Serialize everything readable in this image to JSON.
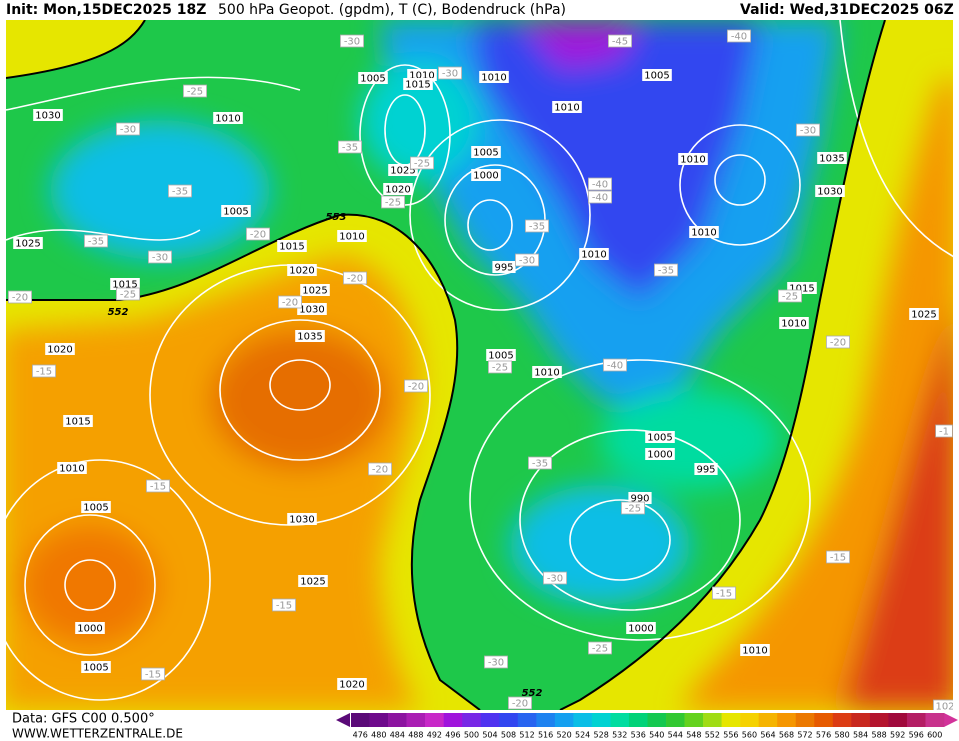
{
  "header": {
    "init": "Init: Mon,15DEC2025 18Z",
    "title": "500 hPa Geopot. (gpdm), T (C), Bodendruck (hPa)",
    "valid": "Valid: Wed,31DEC2025 06Z"
  },
  "footer": {
    "data": "Data: GFS C00 0.500°",
    "site": "WWW.WETTERZENTRALE.DE"
  },
  "colorbar": {
    "values": [
      476,
      480,
      484,
      488,
      492,
      496,
      500,
      504,
      508,
      512,
      516,
      520,
      524,
      528,
      532,
      536,
      540,
      544,
      548,
      552,
      556,
      560,
      564,
      568,
      572,
      576,
      580,
      584,
      588,
      592,
      596,
      600
    ],
    "colors": [
      "#5a0a78",
      "#6e0a8c",
      "#8c14a0",
      "#aa1eb4",
      "#c828c8",
      "#a014dc",
      "#7828e6",
      "#5032f0",
      "#3246f0",
      "#2864f0",
      "#1e82f0",
      "#14a0f0",
      "#0abee6",
      "#00d2d2",
      "#00dca0",
      "#00d278",
      "#14c850",
      "#32c832",
      "#64d21e",
      "#a0dc14",
      "#e6e600",
      "#f5d200",
      "#f5b400",
      "#f59600",
      "#eb7800",
      "#e65a00",
      "#dc3c14",
      "#c8281e",
      "#b4142d",
      "#a00a3c",
      "#b41e64",
      "#c8328c"
    ]
  },
  "pressure_labels": [
    "1030",
    "1010",
    "1005",
    "1010",
    "1015",
    "1010",
    "1005",
    "1010",
    "1005",
    "1000",
    "1025",
    "1020",
    "1005",
    "1025",
    "1015",
    "1010",
    "1020",
    "1025",
    "1030",
    "1035",
    "1015",
    "1020",
    "995",
    "1010",
    "1010",
    "1010",
    "1035",
    "1030",
    "1015",
    "1010",
    "1025",
    "1005",
    "1010",
    "1005",
    "1000",
    "995",
    "990",
    "1015",
    "1010",
    "1005",
    "1030",
    "1025",
    "1000",
    "1005",
    "1020",
    "1000",
    "1010"
  ],
  "geopotential_labels": [
    "553",
    "552",
    "552"
  ],
  "temperature_labels": [
    "-30",
    "-45",
    "-40",
    "-25",
    "-30",
    "-35",
    "-35",
    "-30",
    "-25",
    "-20",
    "-20",
    "-35",
    "-25",
    "-30",
    "-25",
    "-35",
    "-30",
    "-40",
    "-40",
    "-35",
    "-30",
    "-25",
    "-20",
    "-20",
    "-20",
    "-15",
    "-20",
    "-25",
    "-40",
    "-35",
    "-20",
    "-15",
    "-25",
    "-15",
    "-30",
    "-15",
    "-30",
    "-25",
    "-15",
    "-15",
    "-20",
    "-1",
    "102"
  ]
}
